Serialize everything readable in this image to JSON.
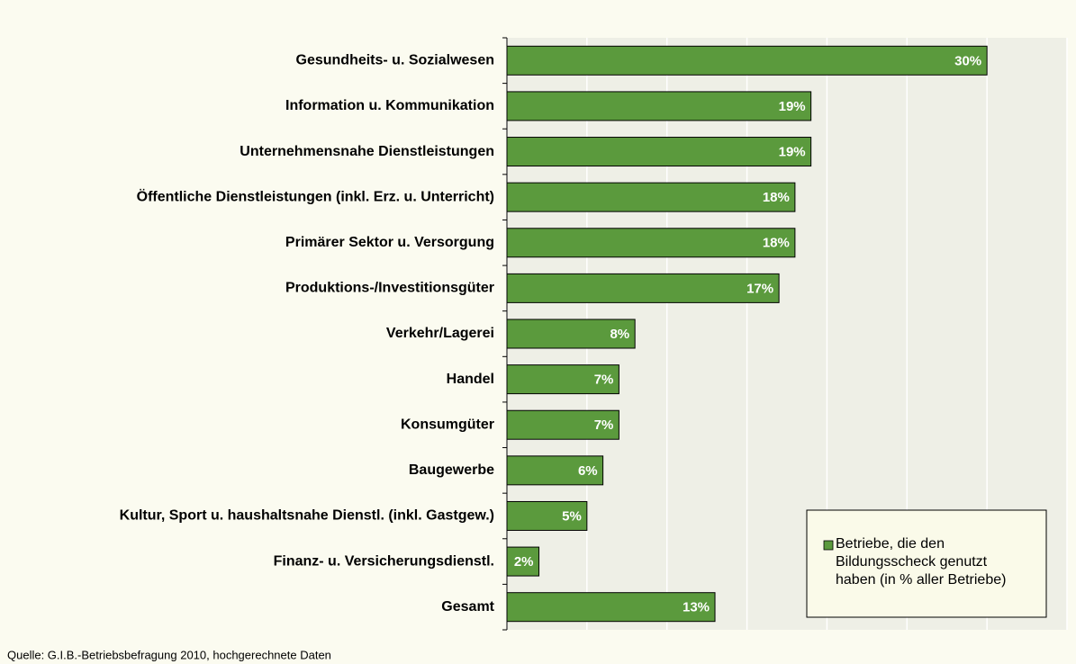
{
  "chart_data": {
    "type": "barh",
    "categories": [
      "Gesundheits- u. Sozialwesen",
      "Information u. Kommunikation",
      "Unternehmensnahe Dienstleistungen",
      "Öffentliche Dienstleistungen (inkl. Erz. u. Unterricht)",
      "Primärer Sektor u. Versorgung",
      "Produktions-/Investitionsgüter",
      "Verkehr/Lagerei",
      "Handel",
      "Konsumgüter",
      "Baugewerbe",
      "Kultur, Sport u. haushaltsnahe Dienstl. (inkl. Gastgew.)",
      "Finanz- u. Versicherungsdienstl.",
      "Gesamt"
    ],
    "series": [
      {
        "name": "Betriebe, die den Bildungsscheck genutzt haben (in % aller Betriebe)",
        "color": "#5b9a3d",
        "values": [
          30,
          19,
          19,
          18,
          18,
          17,
          8,
          7,
          7,
          6,
          5,
          2,
          13
        ],
        "value_labels": [
          "30%",
          "19%",
          "19%",
          "18%",
          "18%",
          "17%",
          "8%",
          "7%",
          "7%",
          "6%",
          "5%",
          "2%",
          "13%"
        ]
      }
    ],
    "xlim": [
      0,
      35
    ],
    "xticks": [
      0,
      5,
      10,
      15,
      20,
      25,
      30,
      35
    ],
    "grid": true,
    "legend": "lower right",
    "source": "Quelle: G.I.B.-Betriebsbefragung 2010, hochgerechnete Daten"
  }
}
